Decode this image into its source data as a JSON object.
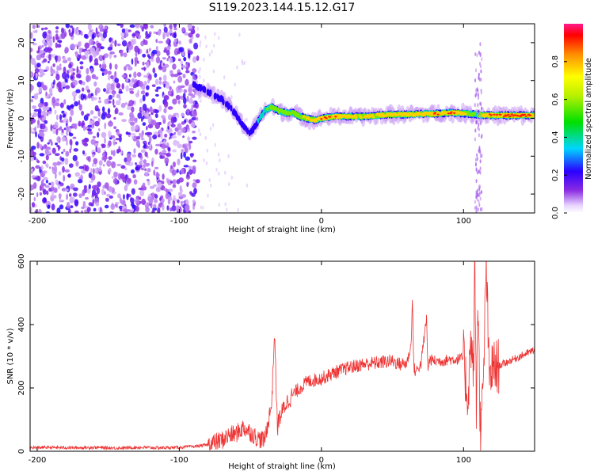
{
  "chart_data": [
    {
      "type": "heatmap",
      "title": "S119.2023.144.15.12.G17",
      "xlabel": "Height of straight line (km)",
      "ylabel": "Frequency (Hz)",
      "xlim": [
        -205,
        150
      ],
      "ylim": [
        -25,
        25
      ],
      "x_ticks": [
        -200,
        -100,
        0,
        100
      ],
      "y_ticks": [
        -20,
        -10,
        0,
        10,
        20
      ],
      "noise_region_x": [
        -205,
        -87
      ],
      "signal_track": {
        "x": [
          -90,
          -80,
          -70,
          -60,
          -55,
          -50,
          -45,
          -40,
          -35,
          -30,
          -25,
          -20,
          -15,
          -10,
          -5,
          0,
          10,
          20,
          30,
          40,
          50,
          60,
          70,
          80,
          90,
          100,
          105,
          110,
          115,
          120,
          130,
          140,
          150
        ],
        "y": [
          9,
          7,
          5,
          1,
          -2,
          -4,
          -1,
          2,
          3,
          2,
          1.5,
          1.5,
          0.5,
          0,
          -0.5,
          0,
          0.5,
          0.5,
          0.5,
          0.8,
          1,
          1,
          1.2,
          1.2,
          1.5,
          1.3,
          1.2,
          1,
          0.8,
          0.8,
          0.8,
          0.8,
          0.8
        ],
        "amplitude": [
          0.2,
          0.2,
          0.2,
          0.25,
          0.2,
          0.25,
          0.3,
          0.5,
          0.6,
          0.55,
          0.6,
          0.6,
          0.65,
          0.75,
          0.8,
          0.85,
          0.85,
          0.75,
          0.75,
          0.8,
          0.8,
          0.8,
          0.8,
          0.85,
          0.85,
          0.8,
          0.6,
          0.5,
          0.8,
          0.9,
          0.9,
          0.9,
          0.9
        ]
      },
      "colorbar": {
        "label": "Normalized spectral amplitude",
        "range": [
          0,
          1
        ],
        "ticks": [
          0.0,
          0.2,
          0.4,
          0.6,
          0.8
        ]
      }
    },
    {
      "type": "line",
      "xlabel": "Height of straight line (km)",
      "ylabel": "SNR (10 * v/v)",
      "xlim": [
        -205,
        150
      ],
      "ylim": [
        0,
        600
      ],
      "x_ticks": [
        -200,
        -100,
        0,
        100
      ],
      "y_ticks": [
        0,
        200,
        400,
        600
      ],
      "color": "#ee3333",
      "series": [
        {
          "x": [
            -205,
            -190,
            -175,
            -160,
            -145,
            -130,
            -115,
            -100,
            -90,
            -80,
            -75,
            -70,
            -65,
            -60,
            -55,
            -50,
            -45,
            -40,
            -35,
            -33,
            -31,
            -30,
            -25,
            -20,
            -15,
            -10,
            -5,
            0,
            10,
            20,
            30,
            40,
            50,
            55,
            60,
            63,
            64,
            65,
            66,
            70,
            74,
            75,
            76,
            80,
            85,
            90,
            95,
            100,
            103,
            105,
            107,
            108,
            109,
            110,
            112,
            114,
            116,
            118,
            120,
            125,
            130,
            140,
            150
          ],
          "y": [
            12,
            12,
            11,
            12,
            10,
            12,
            11,
            12,
            15,
            20,
            28,
            35,
            50,
            55,
            75,
            60,
            40,
            35,
            150,
            380,
            70,
            100,
            150,
            180,
            200,
            220,
            225,
            230,
            250,
            265,
            275,
            280,
            285,
            275,
            278,
            330,
            480,
            270,
            250,
            275,
            420,
            250,
            290,
            285,
            285,
            290,
            290,
            295,
            160,
            350,
            250,
            600,
            100,
            500,
            30,
            220,
            600,
            230,
            260,
            270,
            280,
            300,
            320
          ]
        }
      ]
    }
  ]
}
